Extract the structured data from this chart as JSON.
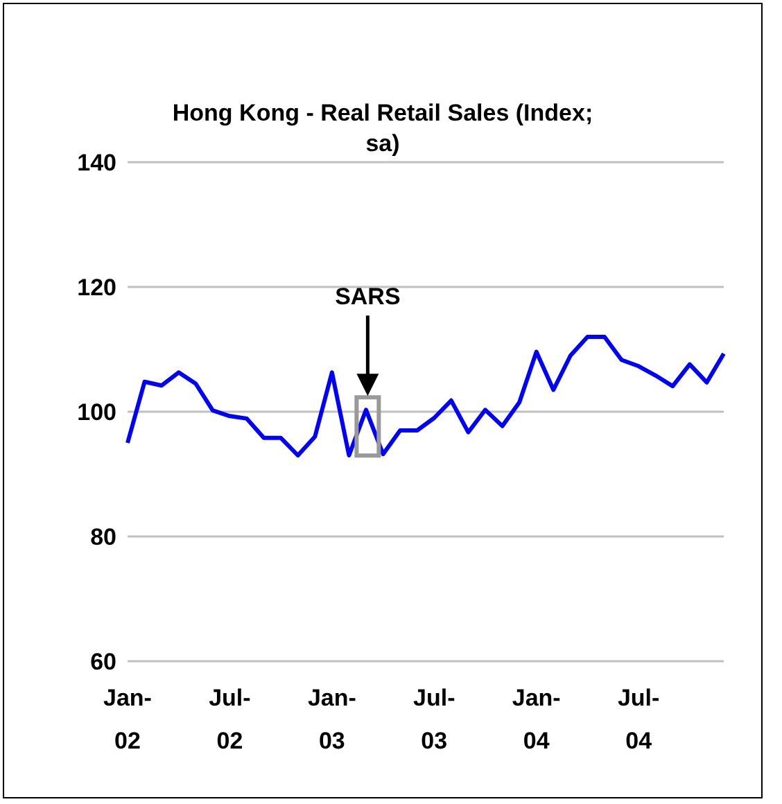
{
  "chart_data": {
    "type": "line",
    "title": "Hong Kong - Real Retail Sales (Index; sa)",
    "categories": [
      "Jan-02",
      null,
      null,
      null,
      null,
      null,
      "Jul-02",
      null,
      null,
      null,
      null,
      null,
      "Jan-03",
      null,
      null,
      null,
      null,
      null,
      "Jul-03",
      null,
      null,
      null,
      null,
      null,
      "Jan-04",
      null,
      null,
      null,
      null,
      null,
      "Jul-04",
      null,
      null,
      null,
      null,
      null
    ],
    "series": [
      {
        "color": "#0000ff",
        "values": [
          95,
          104.8,
          104.2,
          106.3,
          104.5,
          100.2,
          99.3,
          98.9,
          95.8,
          95.8,
          93,
          96,
          106.3,
          93,
          100.3,
          93.2,
          97,
          97,
          99,
          101.8,
          96.7,
          100.3,
          97.7,
          101.5,
          109.6,
          103.5,
          109,
          112,
          112,
          108.3,
          107.3,
          105.8,
          104.1,
          107.6,
          104.7,
          109.3
        ]
      }
    ],
    "ylim": [
      60,
      140
    ],
    "yticks": [
      60,
      80,
      100,
      120,
      140
    ],
    "grid": "y",
    "marker": "none",
    "line_style": "solid",
    "annotations": [
      "SARS"
    ]
  }
}
